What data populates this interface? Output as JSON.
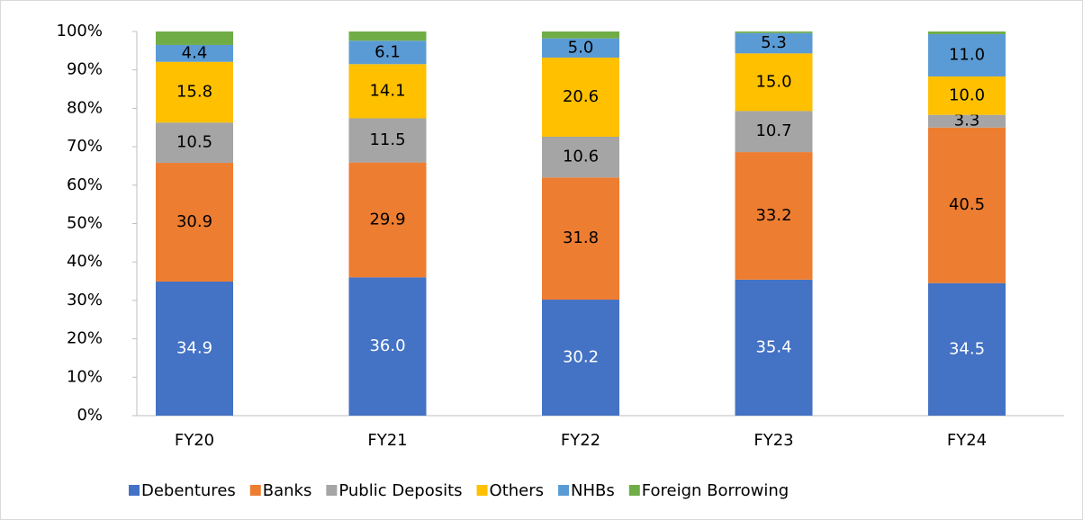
{
  "chart_data": {
    "type": "stacked_bar",
    "categories": [
      "FY20",
      "FY21",
      "FY22",
      "FY23",
      "FY24"
    ],
    "series": [
      {
        "name": "Debentures",
        "color": "#4472c4",
        "label_color": "#ffffff",
        "show_labels": true,
        "values": [
          34.9,
          36.0,
          30.2,
          35.4,
          34.5
        ],
        "value_labels": [
          "34.9",
          "36.0",
          "30.2",
          "35.4",
          "34.5"
        ]
      },
      {
        "name": "Banks",
        "color": "#ed7d31",
        "label_color": "#000000",
        "show_labels": true,
        "values": [
          30.9,
          29.9,
          31.8,
          33.2,
          40.5
        ]
      },
      {
        "name": "Public Deposits",
        "color": "#a5a5a5",
        "label_color": "#000000",
        "show_labels": true,
        "values": [
          10.5,
          11.5,
          10.6,
          10.7,
          3.3
        ]
      },
      {
        "name": "Others",
        "color": "#ffc000",
        "label_color": "#000000",
        "show_labels": true,
        "values": [
          15.8,
          14.1,
          20.6,
          15.0,
          10.0
        ],
        "value_labels": [
          "15.8",
          "14.1",
          "20.6",
          "15.0",
          "10.0"
        ]
      },
      {
        "name": "NHBs",
        "color": "#5b9bd5",
        "label_color": "#000000",
        "show_labels": true,
        "values": [
          4.4,
          6.1,
          5.0,
          5.3,
          11.0
        ],
        "value_labels": [
          "4.4",
          "6.1",
          "5.0",
          "5.3",
          "11.0"
        ]
      },
      {
        "name": "Foreign Borrowing",
        "color": "#70ad47",
        "label_color": "#000000",
        "show_labels": false,
        "values": [
          3.5,
          2.4,
          1.8,
          0.4,
          0.7
        ]
      }
    ],
    "ylim": [
      0,
      100
    ],
    "yticks": [
      {
        "value": 0,
        "label": "0%"
      },
      {
        "value": 10,
        "label": "10%"
      },
      {
        "value": 20,
        "label": "20%"
      },
      {
        "value": 30,
        "label": "30%"
      },
      {
        "value": 40,
        "label": "40%"
      },
      {
        "value": 50,
        "label": "50%"
      },
      {
        "value": 60,
        "label": "60%"
      },
      {
        "value": 70,
        "label": "70%"
      },
      {
        "value": 80,
        "label": "80%"
      },
      {
        "value": 90,
        "label": "90%"
      },
      {
        "value": 100,
        "label": "100%"
      }
    ],
    "legend": "bottom"
  }
}
